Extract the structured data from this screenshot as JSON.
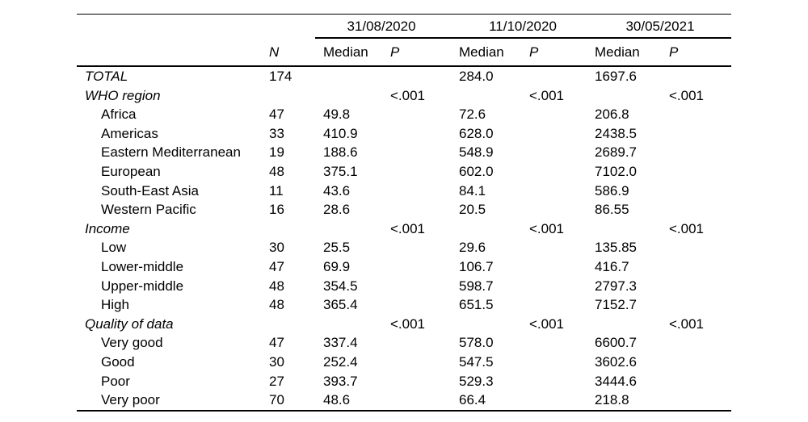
{
  "table": {
    "date_groups": [
      "31/08/2020",
      "11/10/2020",
      "30/05/2021"
    ],
    "col_headers": {
      "n": "N",
      "median": "Median",
      "p": "P"
    },
    "rows": [
      {
        "label": "TOTAL",
        "section": true,
        "n": "174",
        "m1": "",
        "p1": "",
        "m2": "284.0",
        "p2": "",
        "m3": "1697.6",
        "p3": ""
      },
      {
        "label": "WHO region",
        "section": true,
        "n": "",
        "m1": "",
        "p1": "<.001",
        "m2": "",
        "p2": "<.001",
        "m3": "",
        "p3": "<.001"
      },
      {
        "label": "Africa",
        "n": "47",
        "m1": "49.8",
        "p1": "",
        "m2": "72.6",
        "p2": "",
        "m3": "206.8",
        "p3": ""
      },
      {
        "label": "Americas",
        "n": "33",
        "m1": "410.9",
        "p1": "",
        "m2": "628.0",
        "p2": "",
        "m3": "2438.5",
        "p3": ""
      },
      {
        "label": "Eastern Mediterranean",
        "n": "19",
        "m1": "188.6",
        "p1": "",
        "m2": "548.9",
        "p2": "",
        "m3": "2689.7",
        "p3": ""
      },
      {
        "label": "European",
        "n": "48",
        "m1": "375.1",
        "p1": "",
        "m2": "602.0",
        "p2": "",
        "m3": "7102.0",
        "p3": ""
      },
      {
        "label": "South-East Asia",
        "n": "11",
        "m1": "43.6",
        "p1": "",
        "m2": "84.1",
        "p2": "",
        "m3": "586.9",
        "p3": ""
      },
      {
        "label": "Western Pacific",
        "n": "16",
        "m1": "28.6",
        "p1": "",
        "m2": "20.5",
        "p2": "",
        "m3": "86.55",
        "p3": ""
      },
      {
        "label": "Income",
        "section": true,
        "n": "",
        "m1": "",
        "p1": "<.001",
        "m2": "",
        "p2": "<.001",
        "m3": "",
        "p3": "<.001"
      },
      {
        "label": "Low",
        "n": "30",
        "m1": "25.5",
        "p1": "",
        "m2": "29.6",
        "p2": "",
        "m3": "135.85",
        "p3": ""
      },
      {
        "label": "Lower-middle",
        "n": "47",
        "m1": "69.9",
        "p1": "",
        "m2": "106.7",
        "p2": "",
        "m3": "416.7",
        "p3": ""
      },
      {
        "label": "Upper-middle",
        "n": "48",
        "m1": "354.5",
        "p1": "",
        "m2": "598.7",
        "p2": "",
        "m3": "2797.3",
        "p3": ""
      },
      {
        "label": "High",
        "n": "48",
        "m1": "365.4",
        "p1": "",
        "m2": "651.5",
        "p2": "",
        "m3": "7152.7",
        "p3": ""
      },
      {
        "label": "Quality of data",
        "section": true,
        "n": "",
        "m1": "",
        "p1": "<.001",
        "m2": "",
        "p2": "<.001",
        "m3": "",
        "p3": "<.001"
      },
      {
        "label": "Very good",
        "n": "47",
        "m1": "337.4",
        "p1": "",
        "m2": "578.0",
        "p2": "",
        "m3": "6600.7",
        "p3": ""
      },
      {
        "label": "Good",
        "n": "30",
        "m1": "252.4",
        "p1": "",
        "m2": "547.5",
        "p2": "",
        "m3": "3602.6",
        "p3": ""
      },
      {
        "label": "Poor",
        "n": "27",
        "m1": "393.7",
        "p1": "",
        "m2": "529.3",
        "p2": "",
        "m3": "3444.6",
        "p3": ""
      },
      {
        "label": "Very poor",
        "n": "70",
        "m1": "48.6",
        "p1": "",
        "m2": "66.4",
        "p2": "",
        "m3": "218.8",
        "p3": ""
      }
    ]
  }
}
